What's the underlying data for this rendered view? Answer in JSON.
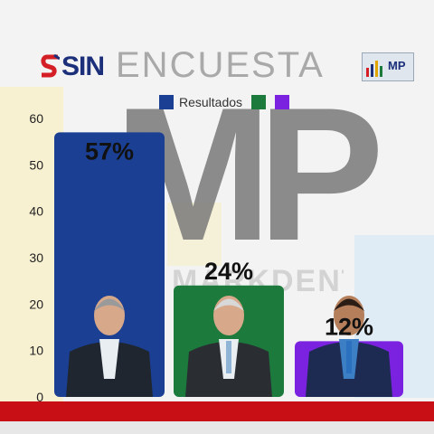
{
  "header": {
    "brand": "SIN",
    "title": "ENCUESTA",
    "badge_text": "MP"
  },
  "watermark": {
    "main": "MP",
    "sub": "MARKDENT"
  },
  "legend": [
    {
      "label": "Resultados",
      "color": "#1a3f93"
    },
    {
      "label": "",
      "color": "#1b7a3c"
    },
    {
      "label": "",
      "color": "#7a22e0"
    }
  ],
  "chart_data": {
    "type": "bar",
    "categories": [
      "",
      "",
      ""
    ],
    "values": [
      57,
      24,
      12
    ],
    "data_labels": [
      "57%",
      "24%",
      "12%"
    ],
    "colors": [
      "#1a3f93",
      "#1b7a3c",
      "#7a22e0"
    ],
    "y_ticks": [
      "0",
      "10",
      "20",
      "30",
      "40",
      "50",
      "60"
    ],
    "ylim": [
      0,
      60
    ],
    "grid": true,
    "legend_position": "top"
  },
  "colors": {
    "bottom_band": "#c80f16",
    "brand": "#1c2f7a"
  }
}
